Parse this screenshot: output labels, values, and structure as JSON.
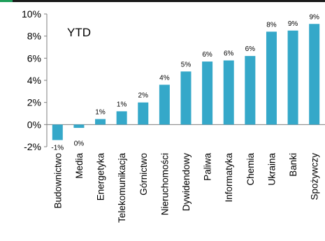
{
  "colors": {
    "bar": "#35A8C9",
    "accent": "#1E9E5A",
    "axis": "#7f7f7f"
  },
  "chart_data": {
    "type": "bar",
    "annotation": "YTD",
    "categories": [
      "Budownictwo",
      "Media",
      "Energetyka",
      "Telekomunikacja",
      "Górnictwo",
      "Nieruchomości",
      "Dywidendowy",
      "Paliwa",
      "Informatyka",
      "Chemia",
      "Ukraina",
      "Banki",
      "Spożywczy"
    ],
    "values": [
      -1.4,
      -0.3,
      0.5,
      1.2,
      2.0,
      3.6,
      4.8,
      5.7,
      5.8,
      6.2,
      8.4,
      8.5,
      9.1
    ],
    "data_labels": [
      "-1%",
      "0%",
      "1%",
      "1%",
      "2%",
      "4%",
      "5%",
      "6%",
      "6%",
      "6%",
      "8%",
      "9%",
      "9%"
    ],
    "ylim": [
      -2,
      10
    ],
    "yticks": [
      -2,
      0,
      2,
      4,
      6,
      8,
      10
    ],
    "ytick_labels": [
      "-2%",
      "0%",
      "2%",
      "4%",
      "6%",
      "8%",
      "10%"
    ],
    "grid": false,
    "legend": "none"
  }
}
